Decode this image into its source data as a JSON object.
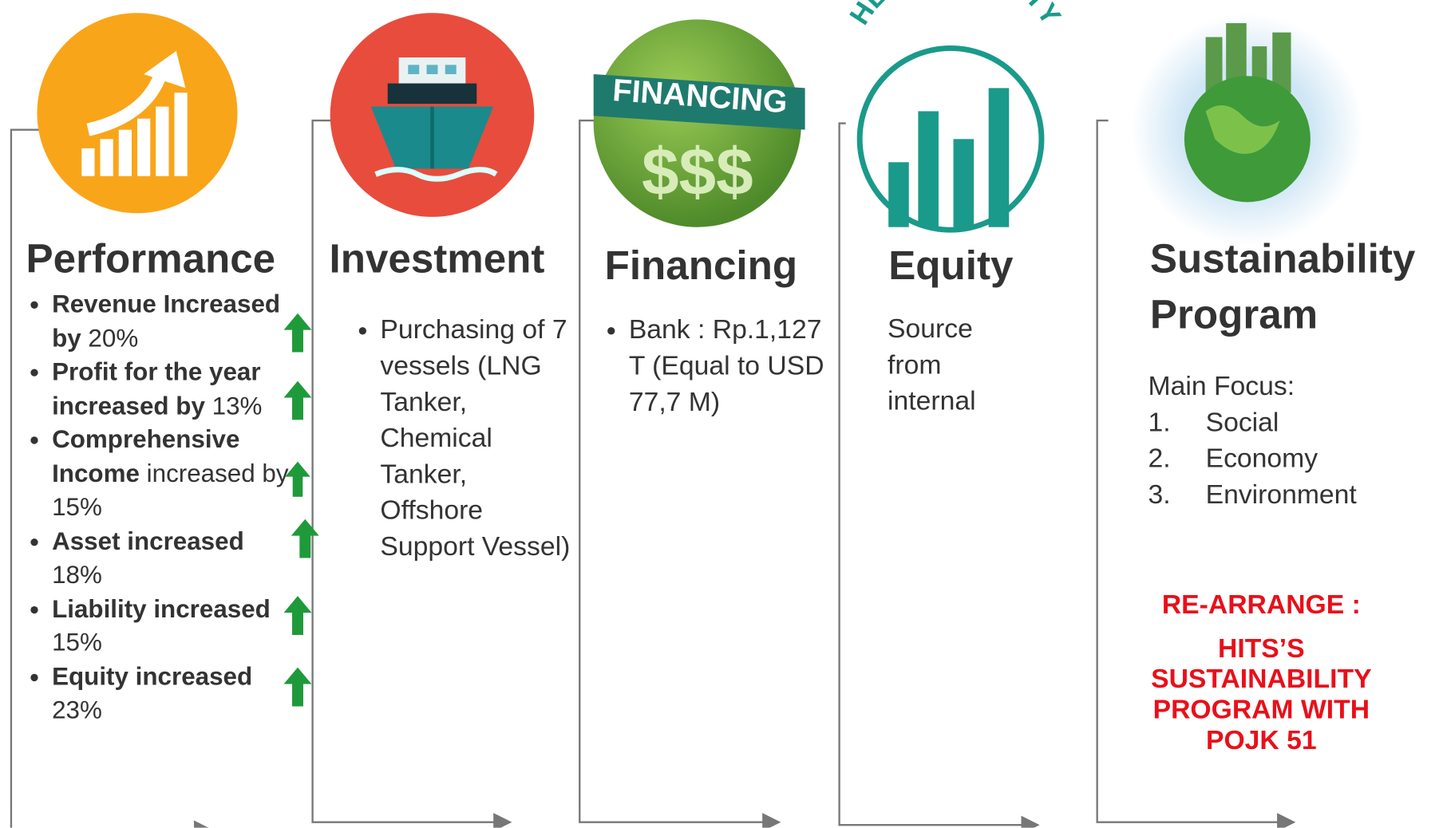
{
  "columns": [
    {
      "title": "Performance",
      "items": [
        {
          "bold": "Revenue Increased by",
          "text": "20%"
        },
        {
          "bold": "Profit for the year increased by",
          "text": "13%"
        },
        {
          "bold": "Comprehensive Income",
          "text": "increased by 15%"
        },
        {
          "bold": "Asset increased",
          "text": "18%"
        },
        {
          "bold": "Liability increased",
          "text": "15%"
        },
        {
          "bold": "Equity increased",
          "text": "23%"
        }
      ]
    },
    {
      "title": "Investment",
      "items": [
        "Purchasing of 7 vessels (LNG Tanker, Chemical Tanker, Offshore Support Vessel)"
      ]
    },
    {
      "title": "Financing",
      "icon_text": [
        "FINANCING",
        "$$$"
      ],
      "items": [
        "Bank : Rp.1,127 T (Equal to USD 77,7 M)"
      ]
    },
    {
      "title": "Equity",
      "icon_text": "HEALTH EQUITY",
      "text": "Source from internal"
    },
    {
      "title": "Sustainability Program",
      "intro": "Main Focus:",
      "list": [
        "Social",
        "Economy",
        "Environment"
      ],
      "notes": [
        "RE-ARRANGE :",
        "HITS’S SUSTAINABILITY PROGRAM WITH POJK 51"
      ]
    }
  ]
}
